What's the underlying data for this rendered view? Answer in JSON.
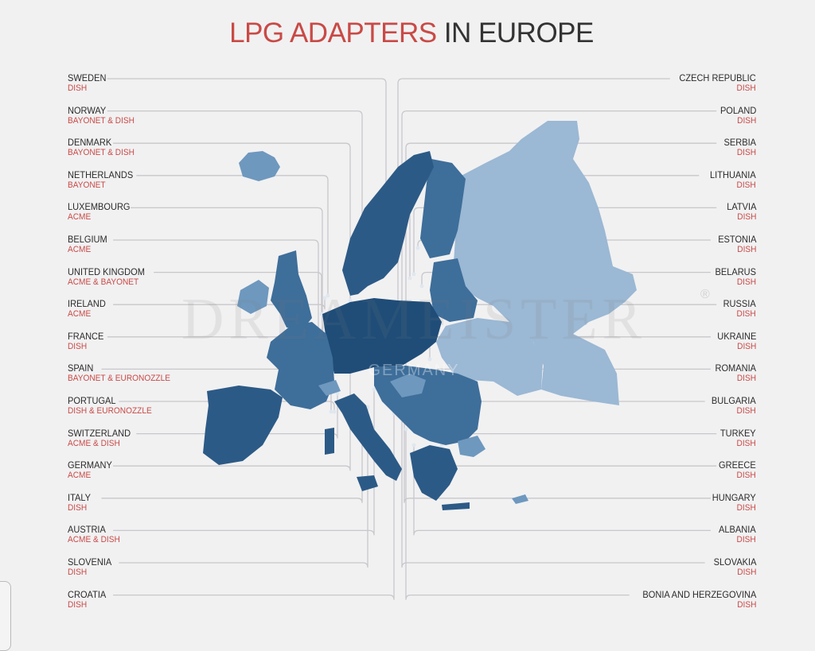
{
  "title": {
    "accent": "LPG ADAPTERS",
    "rest": " IN EUROPE"
  },
  "watermark": {
    "text": "DREAMEISTER",
    "sub": "GERMANY",
    "mark": "®"
  },
  "colors": {
    "title_accent": "#c94a46",
    "label_text": "#2b2b2b",
    "adapter_text": "#c94a46",
    "map_dark": "#1f4d78",
    "map_mid": "#3e6e9a",
    "map_light": "#6e98be",
    "map_pale": "#9bb8d4",
    "leader_line": "#c8c8cc"
  },
  "left_countries": [
    {
      "name": "SWEDEN",
      "adapter": "DISH"
    },
    {
      "name": "NORWAY",
      "adapter": "BAYONET & DISH"
    },
    {
      "name": "DENMARK",
      "adapter": "BAYONET & DISH"
    },
    {
      "name": "NETHERLANDS",
      "adapter": "BAYONET"
    },
    {
      "name": "LUXEMBOURG",
      "adapter": "ACME"
    },
    {
      "name": "BELGIUM",
      "adapter": "ACME"
    },
    {
      "name": "UNITED KINGDOM",
      "adapter": "ACME & BAYONET"
    },
    {
      "name": "IRELAND",
      "adapter": "ACME"
    },
    {
      "name": "FRANCE",
      "adapter": "DISH"
    },
    {
      "name": "SPAIN",
      "adapter": "BAYONET & EURONOZZLE"
    },
    {
      "name": "PORTUGAL",
      "adapter": "DISH & EURONOZZLE"
    },
    {
      "name": "SWITZERLAND",
      "adapter": "ACME & DISH"
    },
    {
      "name": "GERMANY",
      "adapter": "ACME"
    },
    {
      "name": "ITALY",
      "adapter": "DISH"
    },
    {
      "name": "AUSTRIA",
      "adapter": "ACME & DISH"
    },
    {
      "name": "SLOVENIA",
      "adapter": "DISH"
    },
    {
      "name": "CROATIA",
      "adapter": "DISH"
    }
  ],
  "right_countries": [
    {
      "name": "CZECH REPUBLIC",
      "adapter": "DISH"
    },
    {
      "name": "POLAND",
      "adapter": "DISH"
    },
    {
      "name": "SERBIA",
      "adapter": "DISH"
    },
    {
      "name": "LITHUANIA",
      "adapter": "DISH"
    },
    {
      "name": "LATVIA",
      "adapter": "DISH"
    },
    {
      "name": "ESTONIA",
      "adapter": "DISH"
    },
    {
      "name": "BELARUS",
      "adapter": "DISH"
    },
    {
      "name": "RUSSIA",
      "adapter": "DISH"
    },
    {
      "name": "UKRAINE",
      "adapter": "DISH"
    },
    {
      "name": "ROMANIA",
      "adapter": "DISH"
    },
    {
      "name": "BULGARIA",
      "adapter": "DISH"
    },
    {
      "name": "TURKEY",
      "adapter": "DISH"
    },
    {
      "name": "GREECE",
      "adapter": "DISH"
    },
    {
      "name": "HUNGARY",
      "adapter": "DISH"
    },
    {
      "name": "ALBANIA",
      "adapter": "DISH"
    },
    {
      "name": "SLOVAKIA",
      "adapter": "DISH"
    },
    {
      "name": "BONIA AND HERZEGOVINA",
      "adapter": "DISH"
    }
  ]
}
